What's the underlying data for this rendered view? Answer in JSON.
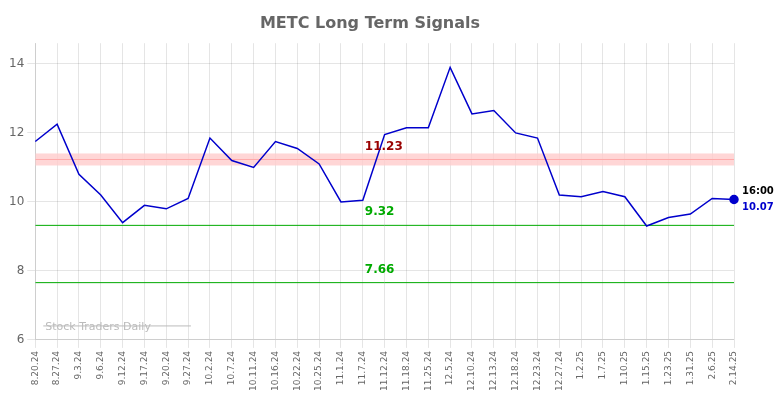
{
  "chart_data": {
    "type": "line",
    "title": "METC Long Term Signals",
    "categories": [
      "8.20.24",
      "8.27.24",
      "9.3.24",
      "9.6.24",
      "9.12.24",
      "9.17.24",
      "9.20.24",
      "9.27.24",
      "10.2.24",
      "10.7.24",
      "10.11.24",
      "10.16.24",
      "10.22.24",
      "10.25.24",
      "11.1.24",
      "11.7.24",
      "11.12.24",
      "11.18.24",
      "11.25.24",
      "12.5.24",
      "12.10.24",
      "12.13.24",
      "12.18.24",
      "12.23.24",
      "12.27.24",
      "1.2.25",
      "1.7.25",
      "1.10.25",
      "1.15.25",
      "1.23.25",
      "1.31.25",
      "2.6.25",
      "2.14.25"
    ],
    "values": [
      11.75,
      12.25,
      10.8,
      10.2,
      9.4,
      9.9,
      9.8,
      10.1,
      11.85,
      11.2,
      11.0,
      11.75,
      11.55,
      11.1,
      10.0,
      10.05,
      11.95,
      12.15,
      12.15,
      13.9,
      12.55,
      12.65,
      12.0,
      11.85,
      10.2,
      10.15,
      10.3,
      10.15,
      9.3,
      9.55,
      9.65,
      10.1,
      10.07
    ],
    "color": "#0000cc",
    "hlines": [
      {
        "value": 11.23,
        "label": "11.23",
        "color": "#ffaaaa",
        "label_color": "#990000"
      },
      {
        "value": 9.32,
        "label": "9.32",
        "color": "#00aa00",
        "label_color": "#00aa00"
      },
      {
        "value": 7.66,
        "label": "7.66",
        "color": "#00aa00",
        "label_color": "#00aa00"
      }
    ],
    "annotations": [
      {
        "text": "16:00",
        "color": "#000000"
      },
      {
        "text": "10.07",
        "color": "#0000cc"
      }
    ],
    "watermark": {
      "text": "Stock Traders Daily",
      "color": "#bbbbbb"
    },
    "ylim": [
      6,
      14.6
    ],
    "yticks": [
      6,
      8,
      10,
      12,
      14
    ],
    "grid": true
  }
}
